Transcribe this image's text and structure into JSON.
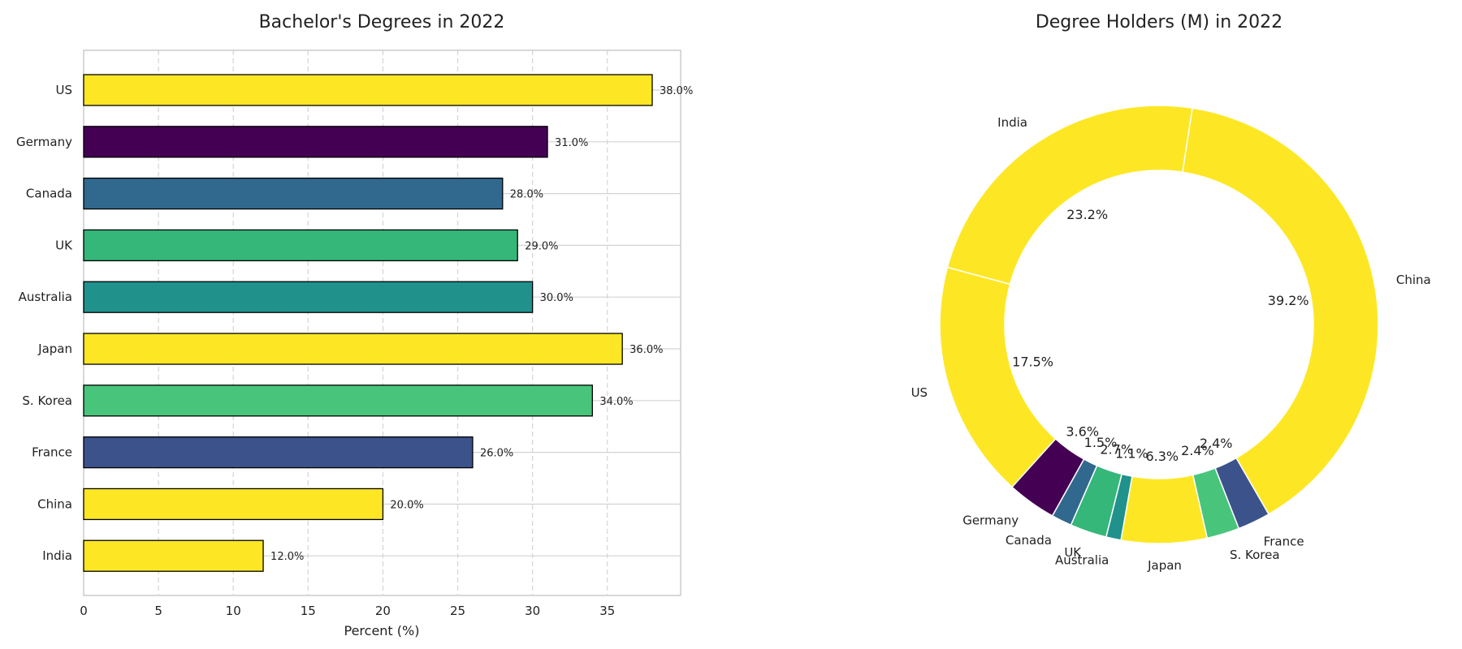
{
  "chart_data": [
    {
      "type": "bar",
      "orientation": "horizontal",
      "title": "Bachelor's Degrees in 2022",
      "xlabel": "Percent (%)",
      "ylabel": "",
      "xlim": [
        0,
        40
      ],
      "xticks": [
        0,
        5,
        10,
        15,
        20,
        25,
        30,
        35
      ],
      "grid": true,
      "categories": [
        "US",
        "Germany",
        "Canada",
        "UK",
        "Australia",
        "Japan",
        "S. Korea",
        "France",
        "China",
        "India"
      ],
      "values": [
        38.0,
        31.0,
        28.0,
        29.0,
        30.0,
        36.0,
        34.0,
        26.0,
        20.0,
        12.0
      ],
      "value_labels": [
        "38.0%",
        "31.0%",
        "28.0%",
        "29.0%",
        "30.0%",
        "36.0%",
        "34.0%",
        "26.0%",
        "20.0%",
        "12.0%"
      ],
      "colors": [
        "#fde725",
        "#440154",
        "#31688e",
        "#35b779",
        "#21918c",
        "#fde725",
        "#48c57b",
        "#3b528b",
        "#fde725",
        "#fde725"
      ]
    },
    {
      "type": "pie",
      "style": "donut",
      "title": "Degree Holders (M) in 2022",
      "categories": [
        "China",
        "India",
        "US",
        "Germany",
        "Canada",
        "UK",
        "Australia",
        "Japan",
        "S. Korea",
        "France"
      ],
      "values": [
        39.2,
        23.2,
        17.5,
        3.6,
        1.5,
        2.7,
        1.1,
        6.3,
        2.4,
        2.4
      ],
      "value_labels": [
        "39.2%",
        "23.2%",
        "17.5%",
        "3.6%",
        "1.5%",
        "2.7%",
        "1.1%",
        "6.3%",
        "2.4%",
        "2.4%"
      ],
      "colors": [
        "#fde725",
        "#fde725",
        "#fde725",
        "#440154",
        "#31688e",
        "#35b779",
        "#21918c",
        "#fde725",
        "#48c57b",
        "#3b528b"
      ]
    }
  ]
}
